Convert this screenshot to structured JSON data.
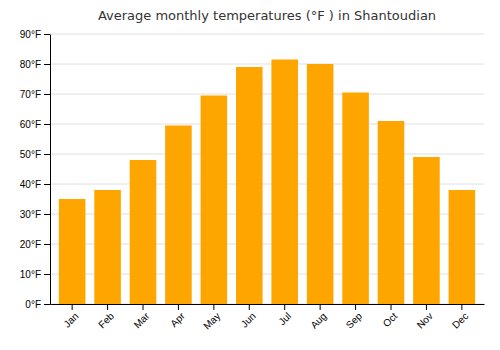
{
  "chart_data": {
    "type": "bar",
    "title": "Average monthly temperatures (°F ) in Shantoudian",
    "categories": [
      "Jan",
      "Feb",
      "Mar",
      "Apr",
      "May",
      "Jun",
      "Jul",
      "Aug",
      "Sep",
      "Oct",
      "Nov",
      "Dec"
    ],
    "values": [
      35,
      38,
      48,
      59.5,
      69.5,
      79,
      81.5,
      80,
      70.5,
      61,
      49,
      38
    ],
    "color": "#FFA500",
    "ylim": [
      0,
      90
    ],
    "yticks": [
      {
        "value": 0,
        "label": "0°F"
      },
      {
        "value": 10,
        "label": "10°F"
      },
      {
        "value": 20,
        "label": "20°F"
      },
      {
        "value": 30,
        "label": "30°F"
      },
      {
        "value": 40,
        "label": "40°F"
      },
      {
        "value": 50,
        "label": "50°F"
      },
      {
        "value": 60,
        "label": "60°F"
      },
      {
        "value": 70,
        "label": "70°F"
      },
      {
        "value": 80,
        "label": "80°F"
      },
      {
        "value": 90,
        "label": "90°F"
      }
    ],
    "grid": true
  }
}
